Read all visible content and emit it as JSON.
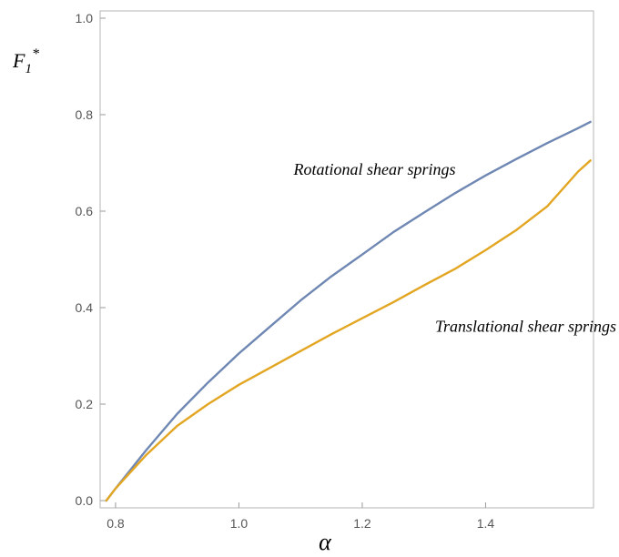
{
  "chart_data": {
    "type": "line",
    "title": "",
    "xlabel": "α",
    "ylabel": "F",
    "ylabel_subscript": "1",
    "ylabel_superscript": "*",
    "xlim": [
      0.775,
      1.575
    ],
    "ylim": [
      -0.015,
      1.015
    ],
    "xticks": [
      {
        "value": 0.8,
        "label": "0.8"
      },
      {
        "value": 1.0,
        "label": "1.0"
      },
      {
        "value": 1.2,
        "label": "1.2"
      },
      {
        "value": 1.4,
        "label": "1.4"
      }
    ],
    "yticks": [
      {
        "value": 0.0,
        "label": "0.0"
      },
      {
        "value": 0.2,
        "label": "0.2"
      },
      {
        "value": 0.4,
        "label": "0.4"
      },
      {
        "value": 0.6,
        "label": "0.6"
      },
      {
        "value": 0.8,
        "label": "0.8"
      },
      {
        "value": 1.0,
        "label": "1.0"
      }
    ],
    "grid": false,
    "series": [
      {
        "color": "#6f87b3",
        "x": [
          0.785,
          0.8,
          0.85,
          0.9,
          0.95,
          1.0,
          1.05,
          1.1,
          1.15,
          1.2,
          1.25,
          1.3,
          1.35,
          1.4,
          1.45,
          1.5,
          1.55,
          1.57
        ],
        "y": [
          0.0,
          0.025,
          0.105,
          0.18,
          0.245,
          0.305,
          0.36,
          0.415,
          0.465,
          0.51,
          0.556,
          0.597,
          0.637,
          0.674,
          0.708,
          0.741,
          0.772,
          0.785
        ]
      },
      {
        "color": "#e3a623",
        "x": [
          0.785,
          0.8,
          0.85,
          0.9,
          0.95,
          1.0,
          1.05,
          1.1,
          1.15,
          1.2,
          1.25,
          1.3,
          1.35,
          1.4,
          1.45,
          1.5,
          1.55,
          1.57
        ],
        "y": [
          0.0,
          0.025,
          0.095,
          0.155,
          0.2,
          0.24,
          0.275,
          0.31,
          0.345,
          0.378,
          0.411,
          0.446,
          0.48,
          0.519,
          0.561,
          0.61,
          0.682,
          0.705
        ]
      }
    ],
    "annotations": [
      {
        "text": "Rotational shear springs",
        "x": 1.22,
        "y": 0.675
      },
      {
        "text": "Translational shear springs",
        "x": 1.465,
        "y": 0.35
      }
    ]
  }
}
